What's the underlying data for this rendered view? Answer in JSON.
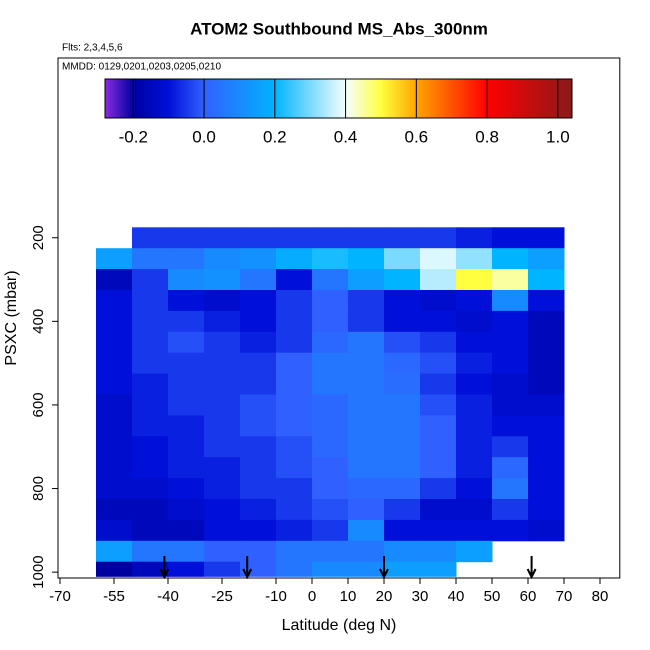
{
  "chart_data": {
    "type": "heatmap",
    "title": "ATOM2 Southbound MS_Abs_300nm",
    "subtitle": "Flts: 2,3,4,5,6",
    "annotation": "MMDD: 0129,0201,0203,0205,0210",
    "x_label": "Latitude (deg N)",
    "y_label": "PSXC (mbar)",
    "xlim": [
      -70,
      85.5
    ],
    "ylim": [
      1014,
      -230
    ],
    "xticks": [
      -70,
      -55,
      -40,
      -25,
      -10,
      0,
      10,
      20,
      30,
      40,
      50,
      60,
      70,
      80
    ],
    "yticks": [
      200,
      400,
      600,
      800,
      1000
    ],
    "x_edges": [
      -60,
      -50,
      -40,
      -30,
      -20,
      -10,
      0,
      10,
      20,
      30,
      40,
      50,
      60,
      70
    ],
    "y_edges": [
      175,
      225,
      275,
      325,
      375,
      425,
      475,
      525,
      575,
      625,
      675,
      725,
      775,
      825,
      875,
      925,
      975,
      1010
    ],
    "z": [
      [
        null,
        -0.05,
        -0.05,
        -0.05,
        -0.05,
        -0.05,
        -0.05,
        -0.05,
        -0.05,
        -0.05,
        -0.08,
        -0.1,
        -0.1
      ],
      [
        0.15,
        0.05,
        0.05,
        0.1,
        0.12,
        0.18,
        0.22,
        0.2,
        0.3,
        0.38,
        0.32,
        0.2,
        0.15
      ],
      [
        -0.15,
        -0.05,
        0.1,
        0.12,
        0.05,
        -0.1,
        0.05,
        0.15,
        0.2,
        0.35,
        0.5,
        0.45,
        0.2
      ],
      [
        -0.1,
        -0.05,
        -0.1,
        -0.12,
        -0.1,
        -0.05,
        0.0,
        -0.05,
        -0.1,
        -0.12,
        -0.1,
        0.1,
        -0.1
      ],
      [
        -0.1,
        -0.05,
        -0.05,
        -0.08,
        -0.1,
        -0.05,
        0.0,
        -0.05,
        -0.1,
        -0.1,
        -0.12,
        -0.1,
        -0.15
      ],
      [
        -0.1,
        -0.05,
        -0.02,
        -0.05,
        -0.08,
        -0.05,
        0.02,
        0.05,
        -0.02,
        -0.05,
        -0.1,
        -0.1,
        -0.15
      ],
      [
        -0.1,
        -0.05,
        -0.05,
        -0.05,
        -0.05,
        0.0,
        0.05,
        0.05,
        0.02,
        -0.02,
        -0.08,
        -0.1,
        -0.15
      ],
      [
        -0.1,
        -0.08,
        -0.05,
        -0.05,
        -0.05,
        0.0,
        0.05,
        0.05,
        0.03,
        -0.05,
        -0.1,
        -0.12,
        -0.15
      ],
      [
        -0.12,
        -0.08,
        -0.05,
        -0.05,
        -0.02,
        0.0,
        0.02,
        0.05,
        0.05,
        -0.02,
        -0.08,
        -0.12,
        -0.12
      ],
      [
        -0.12,
        -0.08,
        -0.08,
        -0.05,
        -0.02,
        0.0,
        0.02,
        0.05,
        0.05,
        0.0,
        -0.08,
        -0.1,
        -0.1
      ],
      [
        -0.12,
        -0.1,
        -0.08,
        -0.05,
        -0.05,
        -0.02,
        0.02,
        0.05,
        0.05,
        0.0,
        -0.08,
        -0.05,
        -0.1
      ],
      [
        -0.12,
        -0.1,
        -0.08,
        -0.08,
        -0.05,
        -0.02,
        0.0,
        0.05,
        0.05,
        0.0,
        -0.08,
        0.02,
        -0.1
      ],
      [
        -0.12,
        -0.12,
        -0.1,
        -0.08,
        -0.05,
        -0.05,
        0.0,
        0.02,
        0.02,
        -0.05,
        -0.1,
        0.05,
        -0.1
      ],
      [
        -0.15,
        -0.15,
        -0.12,
        -0.1,
        -0.08,
        -0.05,
        -0.02,
        0.0,
        -0.05,
        -0.12,
        -0.12,
        -0.05,
        -0.1
      ],
      [
        -0.12,
        -0.15,
        -0.15,
        -0.1,
        -0.1,
        -0.08,
        -0.05,
        0.1,
        -0.1,
        -0.1,
        -0.1,
        -0.1,
        -0.12
      ],
      [
        0.15,
        0.05,
        0.05,
        0.0,
        0.0,
        0.05,
        0.05,
        0.05,
        0.1,
        0.1,
        0.15,
        null,
        null
      ],
      [
        -0.2,
        -0.15,
        -0.1,
        -0.05,
        0.0,
        0.05,
        0.1,
        0.1,
        0.15,
        0.15,
        null,
        null,
        null
      ]
    ],
    "colorbar_lim": [
      -0.28,
      1.04
    ],
    "colorbar_ticks": [
      -0.2,
      {
        "value": 0,
        "label": "0.0"
      },
      0.2,
      0.4,
      0.6,
      0.8,
      {
        "value": 1,
        "label": "1.0"
      }
    ],
    "colorscale": [
      [
        -0.28,
        "#8a2be2"
      ],
      [
        -0.2,
        "#0000a0"
      ],
      [
        -0.1,
        "#0010d8"
      ],
      [
        0.0,
        "#3060ff"
      ],
      [
        0.2,
        "#00b4ff"
      ],
      [
        0.4,
        "#f4ffff"
      ],
      [
        0.5,
        "#ffff40"
      ],
      [
        0.6,
        "#ffa500"
      ],
      [
        0.8,
        "#ff0000"
      ],
      [
        1.04,
        "#8b1a1a"
      ]
    ],
    "arrows_x": [
      -41,
      -18,
      20,
      61
    ]
  }
}
